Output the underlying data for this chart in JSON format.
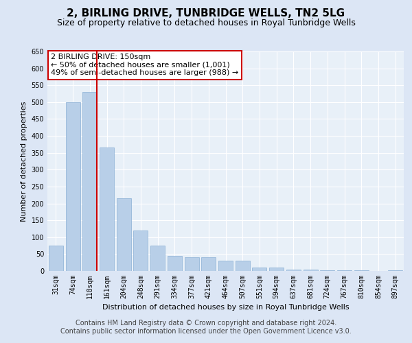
{
  "title": "2, BIRLING DRIVE, TUNBRIDGE WELLS, TN2 5LG",
  "subtitle": "Size of property relative to detached houses in Royal Tunbridge Wells",
  "xlabel": "Distribution of detached houses by size in Royal Tunbridge Wells",
  "ylabel": "Number of detached properties",
  "categories": [
    "31sqm",
    "74sqm",
    "118sqm",
    "161sqm",
    "204sqm",
    "248sqm",
    "291sqm",
    "334sqm",
    "377sqm",
    "421sqm",
    "464sqm",
    "507sqm",
    "551sqm",
    "594sqm",
    "637sqm",
    "681sqm",
    "724sqm",
    "767sqm",
    "810sqm",
    "854sqm",
    "897sqm"
  ],
  "values": [
    75,
    500,
    530,
    365,
    215,
    120,
    75,
    45,
    40,
    40,
    30,
    30,
    10,
    10,
    5,
    5,
    2,
    2,
    2,
    1,
    2
  ],
  "bar_color": "#b8cfe8",
  "bar_edge_color": "#8aafd4",
  "vline_index": 2,
  "vline_color": "#cc0000",
  "ylim_max": 650,
  "yticks": [
    0,
    50,
    100,
    150,
    200,
    250,
    300,
    350,
    400,
    450,
    500,
    550,
    600,
    650
  ],
  "annotation_line1": "2 BIRLING DRIVE: 150sqm",
  "annotation_line2": "← 50% of detached houses are smaller (1,001)",
  "annotation_line3": "49% of semi-detached houses are larger (988) →",
  "footer_line1": "Contains HM Land Registry data © Crown copyright and database right 2024.",
  "footer_line2": "Contains public sector information licensed under the Open Government Licence v3.0.",
  "bg_color": "#dce6f5",
  "plot_bg_color": "#e8f0f8",
  "grid_color": "#ffffff",
  "title_fontsize": 11,
  "subtitle_fontsize": 9,
  "ylabel_fontsize": 8,
  "xlabel_fontsize": 8,
  "tick_fontsize": 7,
  "footer_fontsize": 7,
  "annot_fontsize": 8
}
